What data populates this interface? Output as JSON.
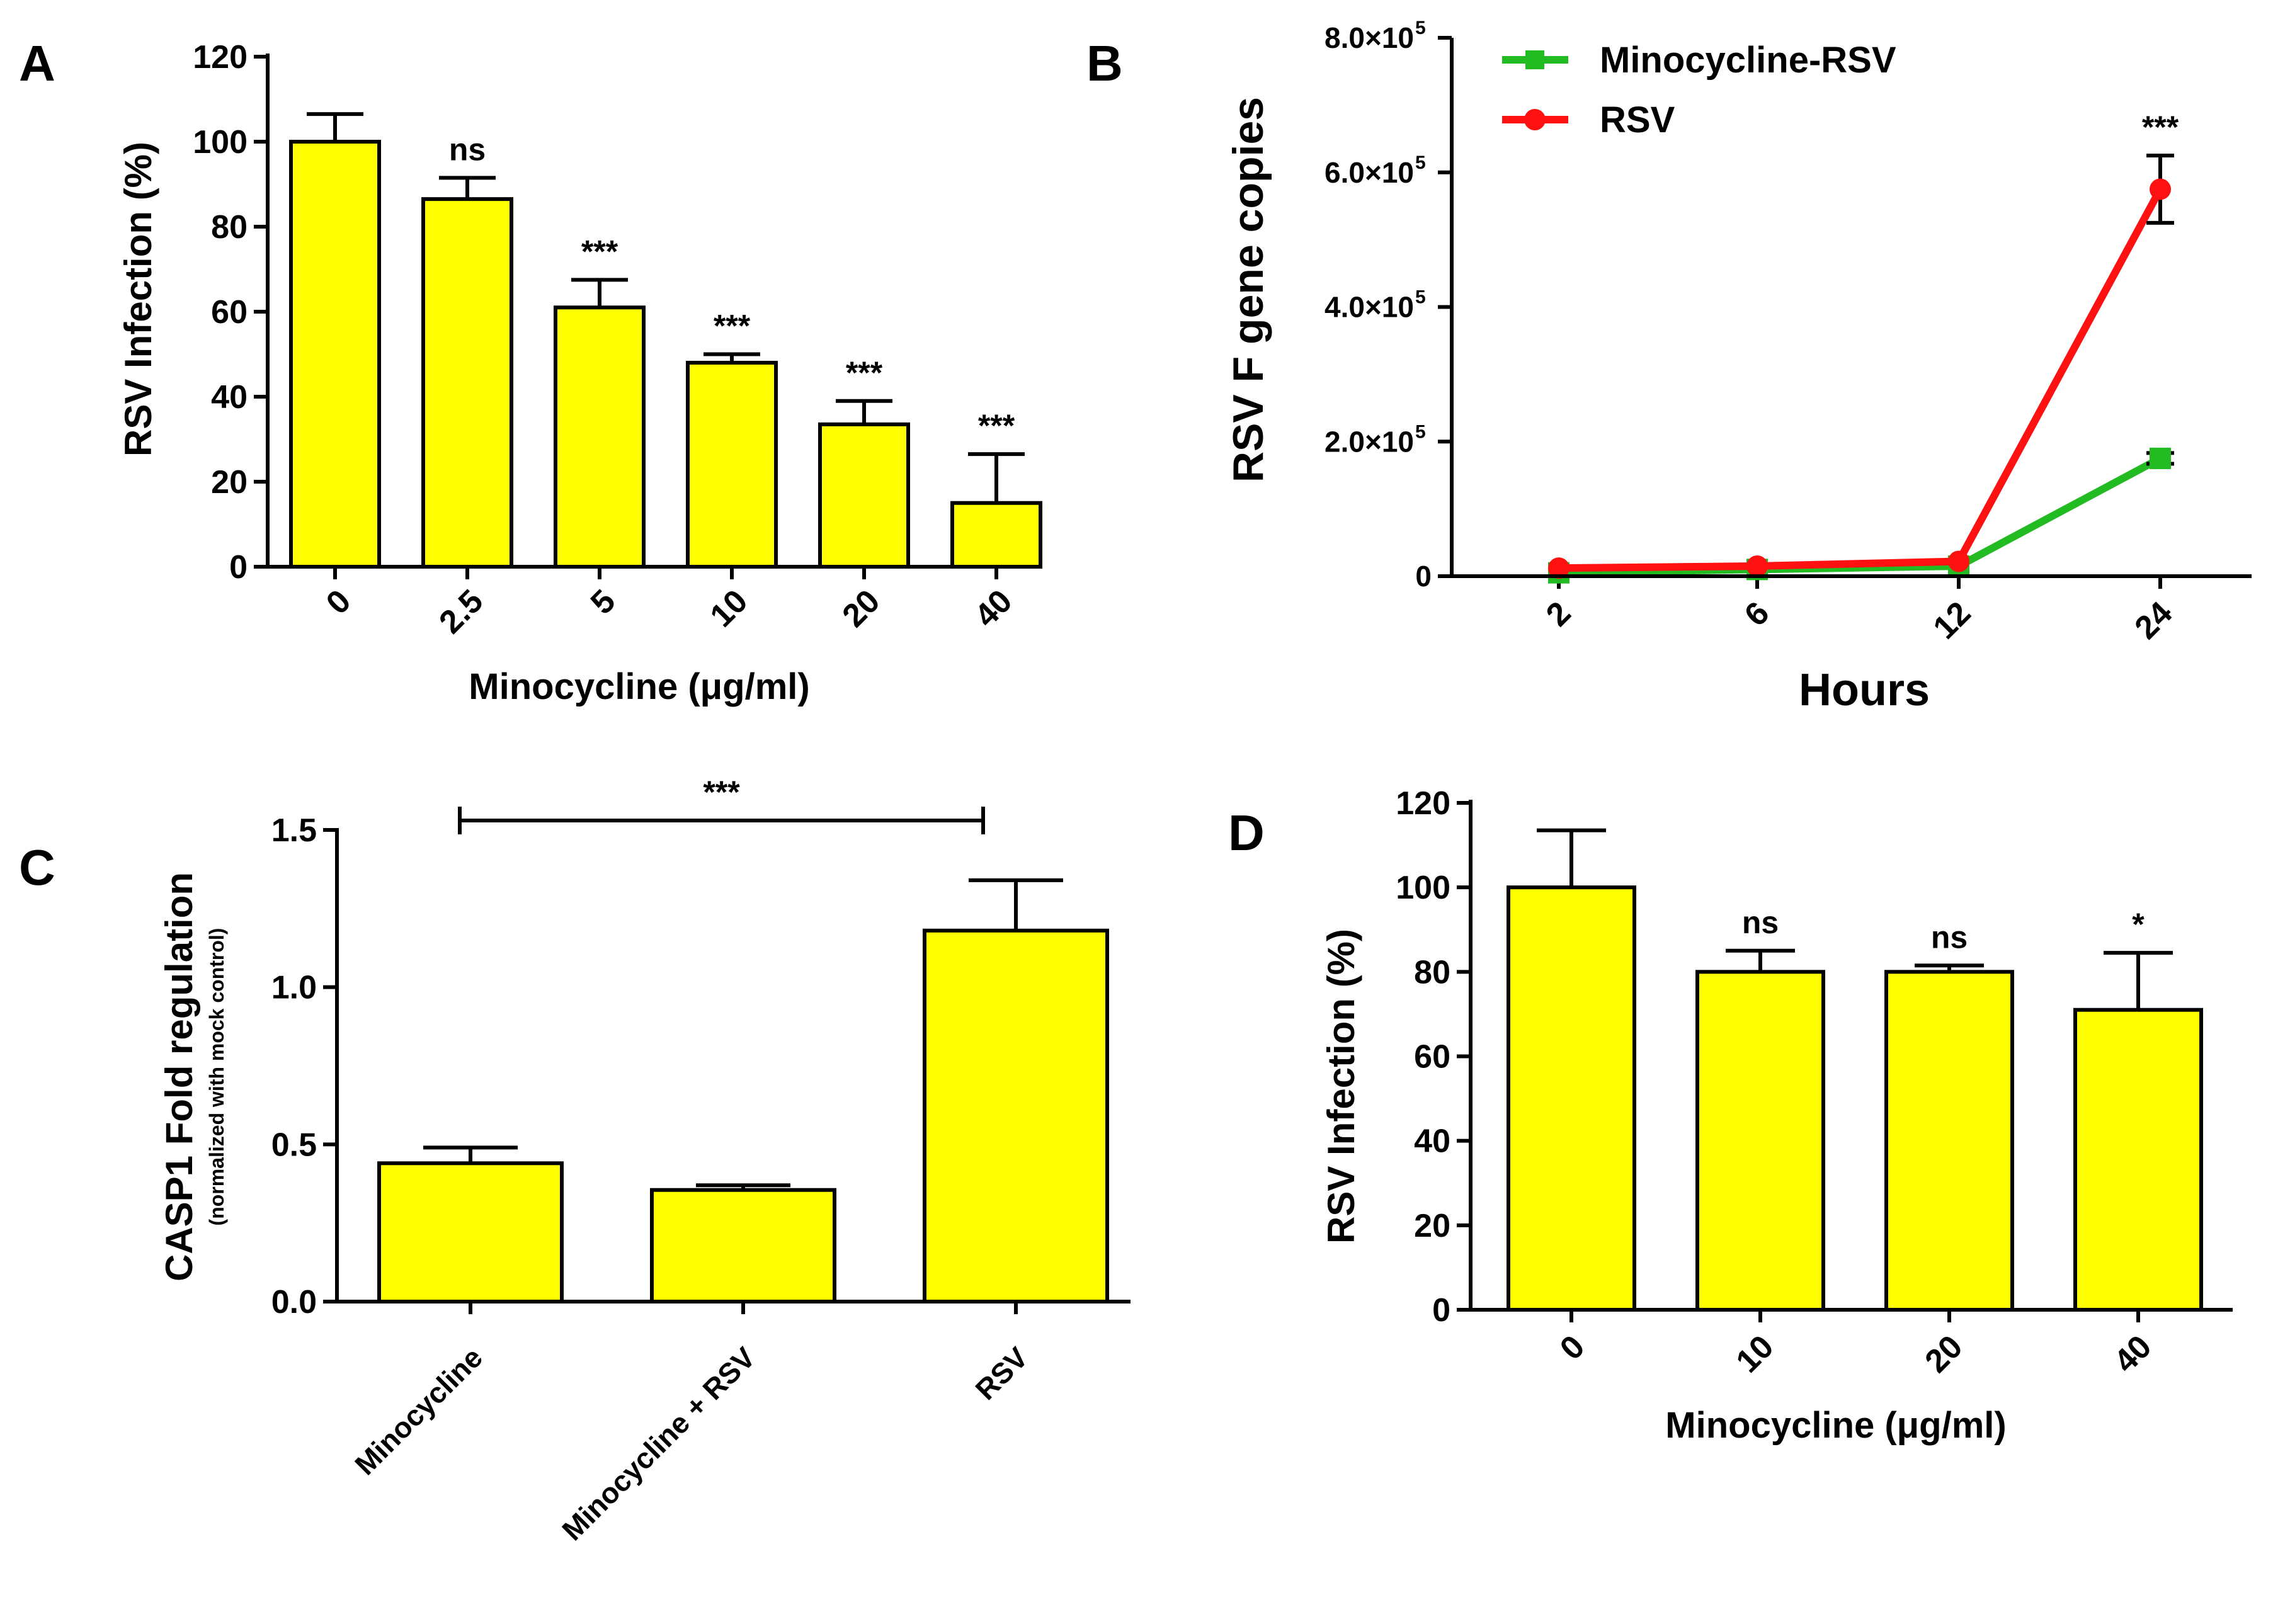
{
  "chart_data": [
    {
      "panel": "A",
      "type": "bar",
      "xlabel": "Minocycline (μg/ml)",
      "ylabel": "RSV Infection (%)",
      "categories": [
        "0",
        "2.5",
        "5",
        "10",
        "20",
        "40"
      ],
      "values": [
        100,
        86.5,
        61,
        48,
        33.5,
        15
      ],
      "errors": [
        6.5,
        5,
        6.5,
        2,
        5.5,
        11.5
      ],
      "annotations": [
        "",
        "ns",
        "***",
        "***",
        "***",
        "***"
      ],
      "ylim": [
        0,
        120
      ],
      "yticks": [
        "0",
        "20",
        "40",
        "60",
        "80",
        "100",
        "120"
      ]
    },
    {
      "panel": "B",
      "type": "line",
      "xlabel": "Hours",
      "ylabel": "RSV F gene copies",
      "categories": [
        "2",
        "6",
        "12",
        "24"
      ],
      "ylim": [
        0,
        800000
      ],
      "yticks": [
        "0",
        "2.0×10",
        "4.0×10",
        "6.0×10",
        "8.0×10"
      ],
      "ytick_exponent": "5",
      "series": [
        {
          "name": "Minocycline-RSV",
          "color": "#22bb22",
          "values": [
            5000,
            10000,
            15000,
            175000
          ],
          "errors": [
            0,
            0,
            0,
            8000
          ]
        },
        {
          "name": "RSV",
          "color": "#ff1111",
          "values": [
            12000,
            15000,
            22000,
            575000
          ],
          "errors": [
            0,
            0,
            0,
            50000
          ]
        }
      ],
      "annotations": [
        {
          "category": "24",
          "text": "***"
        }
      ],
      "legend": "top-left"
    },
    {
      "panel": "C",
      "type": "bar",
      "xlabel": "",
      "ylabel": "CASP1 Fold regulation",
      "ylabel_sub": "(normalized with mock control)",
      "categories": [
        "Minocycline",
        "Minocycline + RSV",
        "RSV"
      ],
      "values": [
        0.44,
        0.355,
        1.18
      ],
      "errors": [
        0.05,
        0.015,
        0.16
      ],
      "ylim": [
        0,
        1.5
      ],
      "yticks": [
        "0.0",
        "0.5",
        "1.0",
        "1.5"
      ],
      "bracket": {
        "from": "Minocycline",
        "to": "RSV",
        "text": "***"
      }
    },
    {
      "panel": "D",
      "type": "bar",
      "xlabel": "Minocycline (μg/ml)",
      "ylabel": "RSV Infection (%)",
      "categories": [
        "0",
        "10",
        "20",
        "40"
      ],
      "values": [
        100,
        80,
        80,
        71
      ],
      "errors": [
        13.5,
        5,
        1.5,
        13.5
      ],
      "annotations": [
        "",
        "ns",
        "ns",
        "*"
      ],
      "ylim": [
        0,
        120
      ],
      "yticks": [
        "0",
        "20",
        "40",
        "60",
        "80",
        "100",
        "120"
      ]
    }
  ]
}
